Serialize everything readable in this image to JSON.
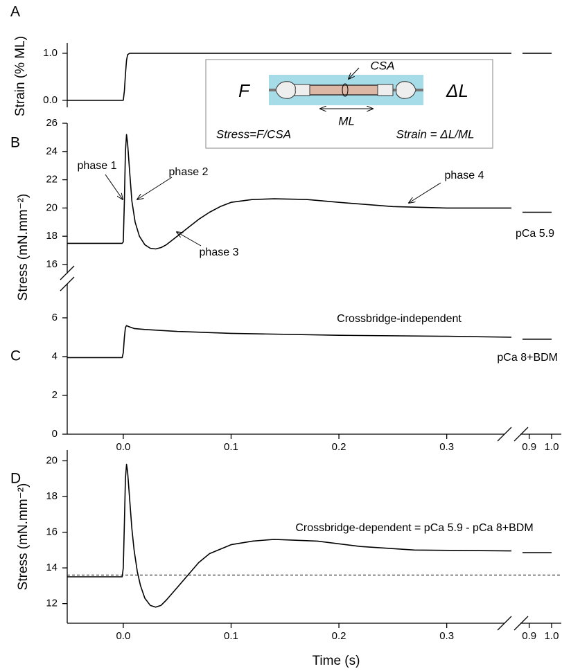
{
  "chart_data": [
    {
      "type": "line",
      "panel": "A",
      "ylabel": "Strain (% ML)",
      "xlim": [
        -0.052,
        1.0
      ],
      "x_break": [
        0.36,
        0.87
      ],
      "ylim": [
        -0.15,
        1.22
      ],
      "yticks": [
        {
          "value": 0,
          "label": "0.0"
        },
        {
          "value": 1,
          "label": "1.0"
        }
      ],
      "x": [
        -0.052,
        0,
        0.001,
        0.002,
        0.003,
        0.004,
        0.006,
        0.36,
        0.37,
        0.87,
        1.0
      ],
      "series": [
        {
          "color": "#000000",
          "values": [
            0,
            0,
            0.2,
            0.55,
            0.85,
            0.97,
            1.0,
            1.0,
            null,
            1.0,
            1.0
          ]
        }
      ],
      "inset": {
        "force": "F",
        "extension": "ΔL",
        "area": "CSA",
        "length": "ML",
        "stress": "Stress=F/CSA",
        "strain": "Strain = ΔL/ML"
      }
    },
    {
      "type": "line",
      "panel": "B",
      "ylabel": "Stress (mN.mm⁻²)",
      "xlim": [
        -0.052,
        1.0
      ],
      "x_break": [
        0.36,
        0.87
      ],
      "ylim": [
        15.36,
        26
      ],
      "yticks": [
        16,
        18,
        20,
        22,
        24,
        26
      ],
      "x": [
        -0.052,
        -0.001,
        0,
        0.001,
        0.002,
        0.003,
        0.004,
        0.006,
        0.008,
        0.011,
        0.015,
        0.02,
        0.025,
        0.03,
        0.035,
        0.04,
        0.05,
        0.06,
        0.07,
        0.08,
        0.09,
        0.1,
        0.12,
        0.14,
        0.17,
        0.2,
        0.25,
        0.3,
        0.36,
        0.37,
        0.87,
        1.0
      ],
      "series": [
        {
          "color": "#000000",
          "values": [
            17.5,
            17.5,
            17.6,
            20.5,
            24.0,
            25.2,
            24.6,
            22.5,
            20.5,
            19.0,
            18.0,
            17.4,
            17.15,
            17.1,
            17.2,
            17.4,
            18.0,
            18.6,
            19.2,
            19.7,
            20.1,
            20.4,
            20.6,
            20.65,
            20.6,
            20.4,
            20.1,
            20.0,
            20.0,
            null,
            19.7,
            19.7
          ]
        }
      ],
      "annotations": [
        "phase 1",
        "phase 2",
        "phase 3",
        "phase 4",
        "pCa 5.9"
      ]
    },
    {
      "type": "line",
      "panel": "C",
      "xlim": [
        -0.052,
        1.0
      ],
      "x_break": [
        0.36,
        0.87
      ],
      "xticks": [
        {
          "value": 0,
          "label": "0.0"
        },
        0.1,
        0.2,
        0.3,
        0.9,
        {
          "value": 1,
          "label": "1.0"
        }
      ],
      "ylim": [
        0,
        7.75
      ],
      "yticks": [
        0,
        2,
        4,
        6
      ],
      "x": [
        -0.052,
        -0.001,
        0,
        0.001,
        0.002,
        0.003,
        0.005,
        0.01,
        0.02,
        0.05,
        0.1,
        0.2,
        0.3,
        0.36,
        0.37,
        0.87,
        1.0
      ],
      "series": [
        {
          "color": "#000000",
          "values": [
            3.95,
            3.95,
            4.2,
            5.0,
            5.5,
            5.6,
            5.55,
            5.45,
            5.4,
            5.3,
            5.2,
            5.1,
            5.05,
            5.0,
            null,
            4.9,
            4.9
          ]
        }
      ],
      "annotations": [
        "Crossbridge-independent",
        "pCa 8+BDM"
      ]
    },
    {
      "type": "line",
      "panel": "D",
      "ylabel": "Stress (mN.mm⁻²)",
      "xlabel": "Time (s)",
      "xlim": [
        -0.052,
        1.0
      ],
      "x_break": [
        0.36,
        0.87
      ],
      "xticks": [
        {
          "value": 0,
          "label": "0.0"
        },
        0.1,
        0.2,
        0.3,
        0.9,
        {
          "value": 1,
          "label": "1.0"
        }
      ],
      "ylim": [
        10.9,
        20.6
      ],
      "yticks": [
        12,
        14,
        16,
        18,
        20
      ],
      "hline": 13.6,
      "x": [
        -0.052,
        -0.001,
        0,
        0.001,
        0.002,
        0.003,
        0.004,
        0.006,
        0.008,
        0.01,
        0.013,
        0.016,
        0.02,
        0.025,
        0.03,
        0.035,
        0.04,
        0.05,
        0.06,
        0.07,
        0.08,
        0.1,
        0.12,
        0.14,
        0.18,
        0.22,
        0.27,
        0.36,
        0.37,
        0.87,
        1.0
      ],
      "series": [
        {
          "color": "#000000",
          "values": [
            13.5,
            13.5,
            14.0,
            16.5,
            19.0,
            19.8,
            19.4,
            17.8,
            16.2,
            15.0,
            13.8,
            13.0,
            12.3,
            11.9,
            11.8,
            11.9,
            12.2,
            12.9,
            13.6,
            14.3,
            14.8,
            15.3,
            15.5,
            15.6,
            15.5,
            15.2,
            15.0,
            14.95,
            null,
            14.85,
            14.85
          ]
        }
      ],
      "annotations": [
        "Crossbridge-dependent = pCa 5.9 - pCa 8+BDM"
      ]
    }
  ]
}
